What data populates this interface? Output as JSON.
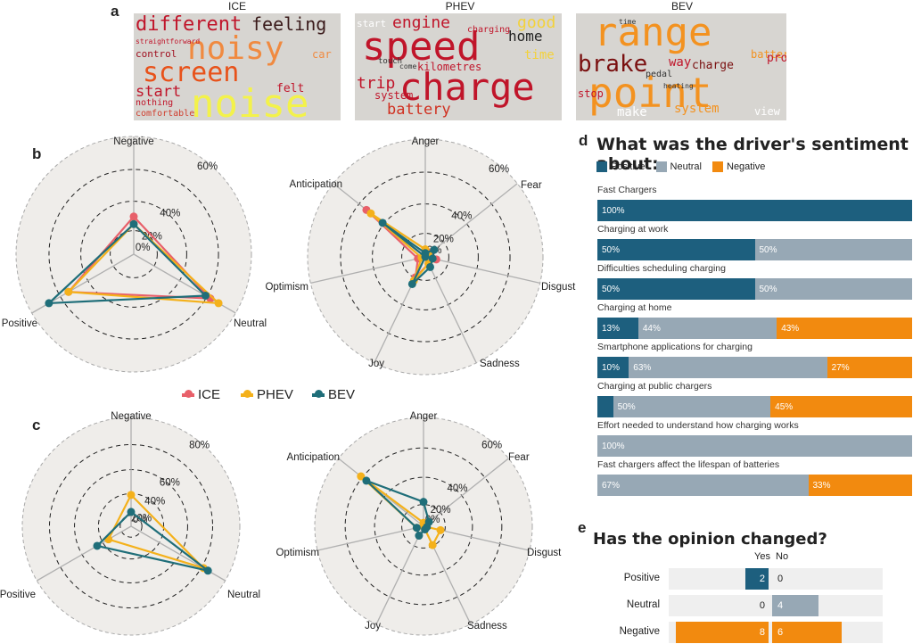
{
  "panels": {
    "a": "a",
    "b": "b",
    "c": "c",
    "d": "d",
    "e": "e"
  },
  "colors": {
    "ICE": "#e8606a",
    "PHEV": "#f4b11b",
    "BEV": "#1f6e79",
    "positive": "#1d5f7e",
    "neutral": "#97a8b5",
    "negative": "#f28a0f"
  },
  "wordclouds": [
    {
      "title": "ICE",
      "words": [
        "different",
        "feeling",
        "noisy",
        "screen",
        "start",
        "noise",
        "control",
        "straightforward",
        "nothing",
        "comfortable",
        "felt",
        "car"
      ]
    },
    {
      "title": "PHEV",
      "words": [
        "speed",
        "engine",
        "good",
        "home",
        "charge",
        "trip",
        "kilometres",
        "battery",
        "system",
        "time",
        "charging",
        "start",
        "touch",
        "come"
      ]
    },
    {
      "title": "BEV",
      "words": [
        "range",
        "brake",
        "charge",
        "way",
        "point",
        "battery",
        "problem",
        "stop",
        "make",
        "system",
        "view",
        "pedal",
        "time",
        "heating"
      ]
    }
  ],
  "legend": {
    "ICE": "ICE",
    "PHEV": "PHEV",
    "BEV": "BEV"
  },
  "chart_data": [
    {
      "type": "radar",
      "panel": "b",
      "axes": [
        "Negative",
        "Neutral",
        "Positive"
      ],
      "rings": [
        "0%",
        "20%",
        "40%",
        "60%"
      ],
      "series": [
        {
          "name": "ICE",
          "values": [
            20,
            47,
            40
          ]
        },
        {
          "name": "PHEV",
          "values": [
            16,
            52,
            40
          ]
        },
        {
          "name": "BEV",
          "values": [
            16,
            44,
            52
          ]
        }
      ]
    },
    {
      "type": "radar",
      "panel": "b",
      "axes": [
        "Anger",
        "Fear",
        "Disgust",
        "Sadness",
        "Joy",
        "Optimism",
        "Anticipation"
      ],
      "rings": [
        "0%",
        "20%",
        "40%",
        "60%"
      ],
      "series": [
        {
          "name": "ICE",
          "values": [
            0,
            4,
            6,
            4,
            12,
            4,
            40
          ]
        },
        {
          "name": "PHEV",
          "values": [
            4,
            2,
            4,
            4,
            14,
            2,
            37
          ]
        },
        {
          "name": "BEV",
          "values": [
            2,
            6,
            4,
            6,
            16,
            0,
            29
          ]
        }
      ]
    },
    {
      "type": "radar",
      "panel": "c",
      "axes": [
        "Negative",
        "Neutral",
        "Positive"
      ],
      "rings": [
        "0%",
        "20%",
        "40%",
        "60%",
        "80%"
      ],
      "series": [
        {
          "name": "PHEV",
          "values": [
            24,
            64,
            20
          ]
        },
        {
          "name": "BEV",
          "values": [
            11,
            68,
            30
          ]
        }
      ]
    },
    {
      "type": "radar",
      "panel": "c",
      "axes": [
        "Anger",
        "Fear",
        "Disgust",
        "Sadness",
        "Joy",
        "Optimism",
        "Anticipation"
      ],
      "rings": [
        "0%",
        "20%",
        "40%",
        "60%"
      ],
      "series": [
        {
          "name": "PHEV",
          "values": [
            2,
            0,
            10,
            12,
            0,
            4,
            46
          ]
        },
        {
          "name": "BEV",
          "values": [
            14,
            4,
            2,
            2,
            6,
            4,
            42
          ]
        }
      ]
    },
    {
      "type": "bar",
      "panel": "d",
      "title": "What was the driver's sentiment about:",
      "legend": [
        "Positive",
        "Neutral",
        "Negative"
      ],
      "categories": [
        "Fast Chargers",
        "Charging at work",
        "Difficulties scheduling charging",
        "Charging at home",
        "Smartphone applications for charging",
        "Charging at public chargers",
        "Effort needed to understand how charging works",
        "Fast chargers affect the lifespan of batteries"
      ],
      "series": [
        {
          "name": "Positive",
          "values": [
            100,
            50,
            50,
            13,
            10,
            5,
            0,
            0
          ],
          "labels": [
            "100%",
            "50%",
            "50%",
            "13%",
            "10%",
            "",
            "",
            ""
          ]
        },
        {
          "name": "Neutral",
          "values": [
            0,
            50,
            50,
            44,
            63,
            50,
            100,
            67
          ],
          "labels": [
            "",
            "50%",
            "50%",
            "44%",
            "63%",
            "50%",
            "100%",
            "67%"
          ]
        },
        {
          "name": "Negative",
          "values": [
            0,
            0,
            0,
            43,
            27,
            45,
            0,
            33
          ],
          "labels": [
            "",
            "",
            "",
            "43%",
            "27%",
            "45%",
            "",
            "33%"
          ]
        }
      ]
    },
    {
      "type": "bar",
      "panel": "e",
      "title": "Has the opinion changed?",
      "columns": [
        "Yes",
        "No"
      ],
      "categories": [
        "Positive",
        "Neutral",
        "Negative"
      ],
      "yes": [
        2,
        0,
        8
      ],
      "no": [
        0,
        4,
        6
      ]
    }
  ]
}
